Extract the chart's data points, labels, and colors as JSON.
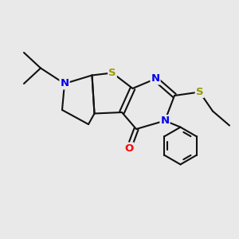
{
  "bg_color": "#e9e9e9",
  "atom_colors": {
    "S": "#999900",
    "N": "#0000ee",
    "O": "#ff0000",
    "C": "#111111"
  },
  "bond_color": "#111111",
  "bond_width": 1.5,
  "font_size_atom": 9.5,
  "fig_bg": "#e9e9e9"
}
